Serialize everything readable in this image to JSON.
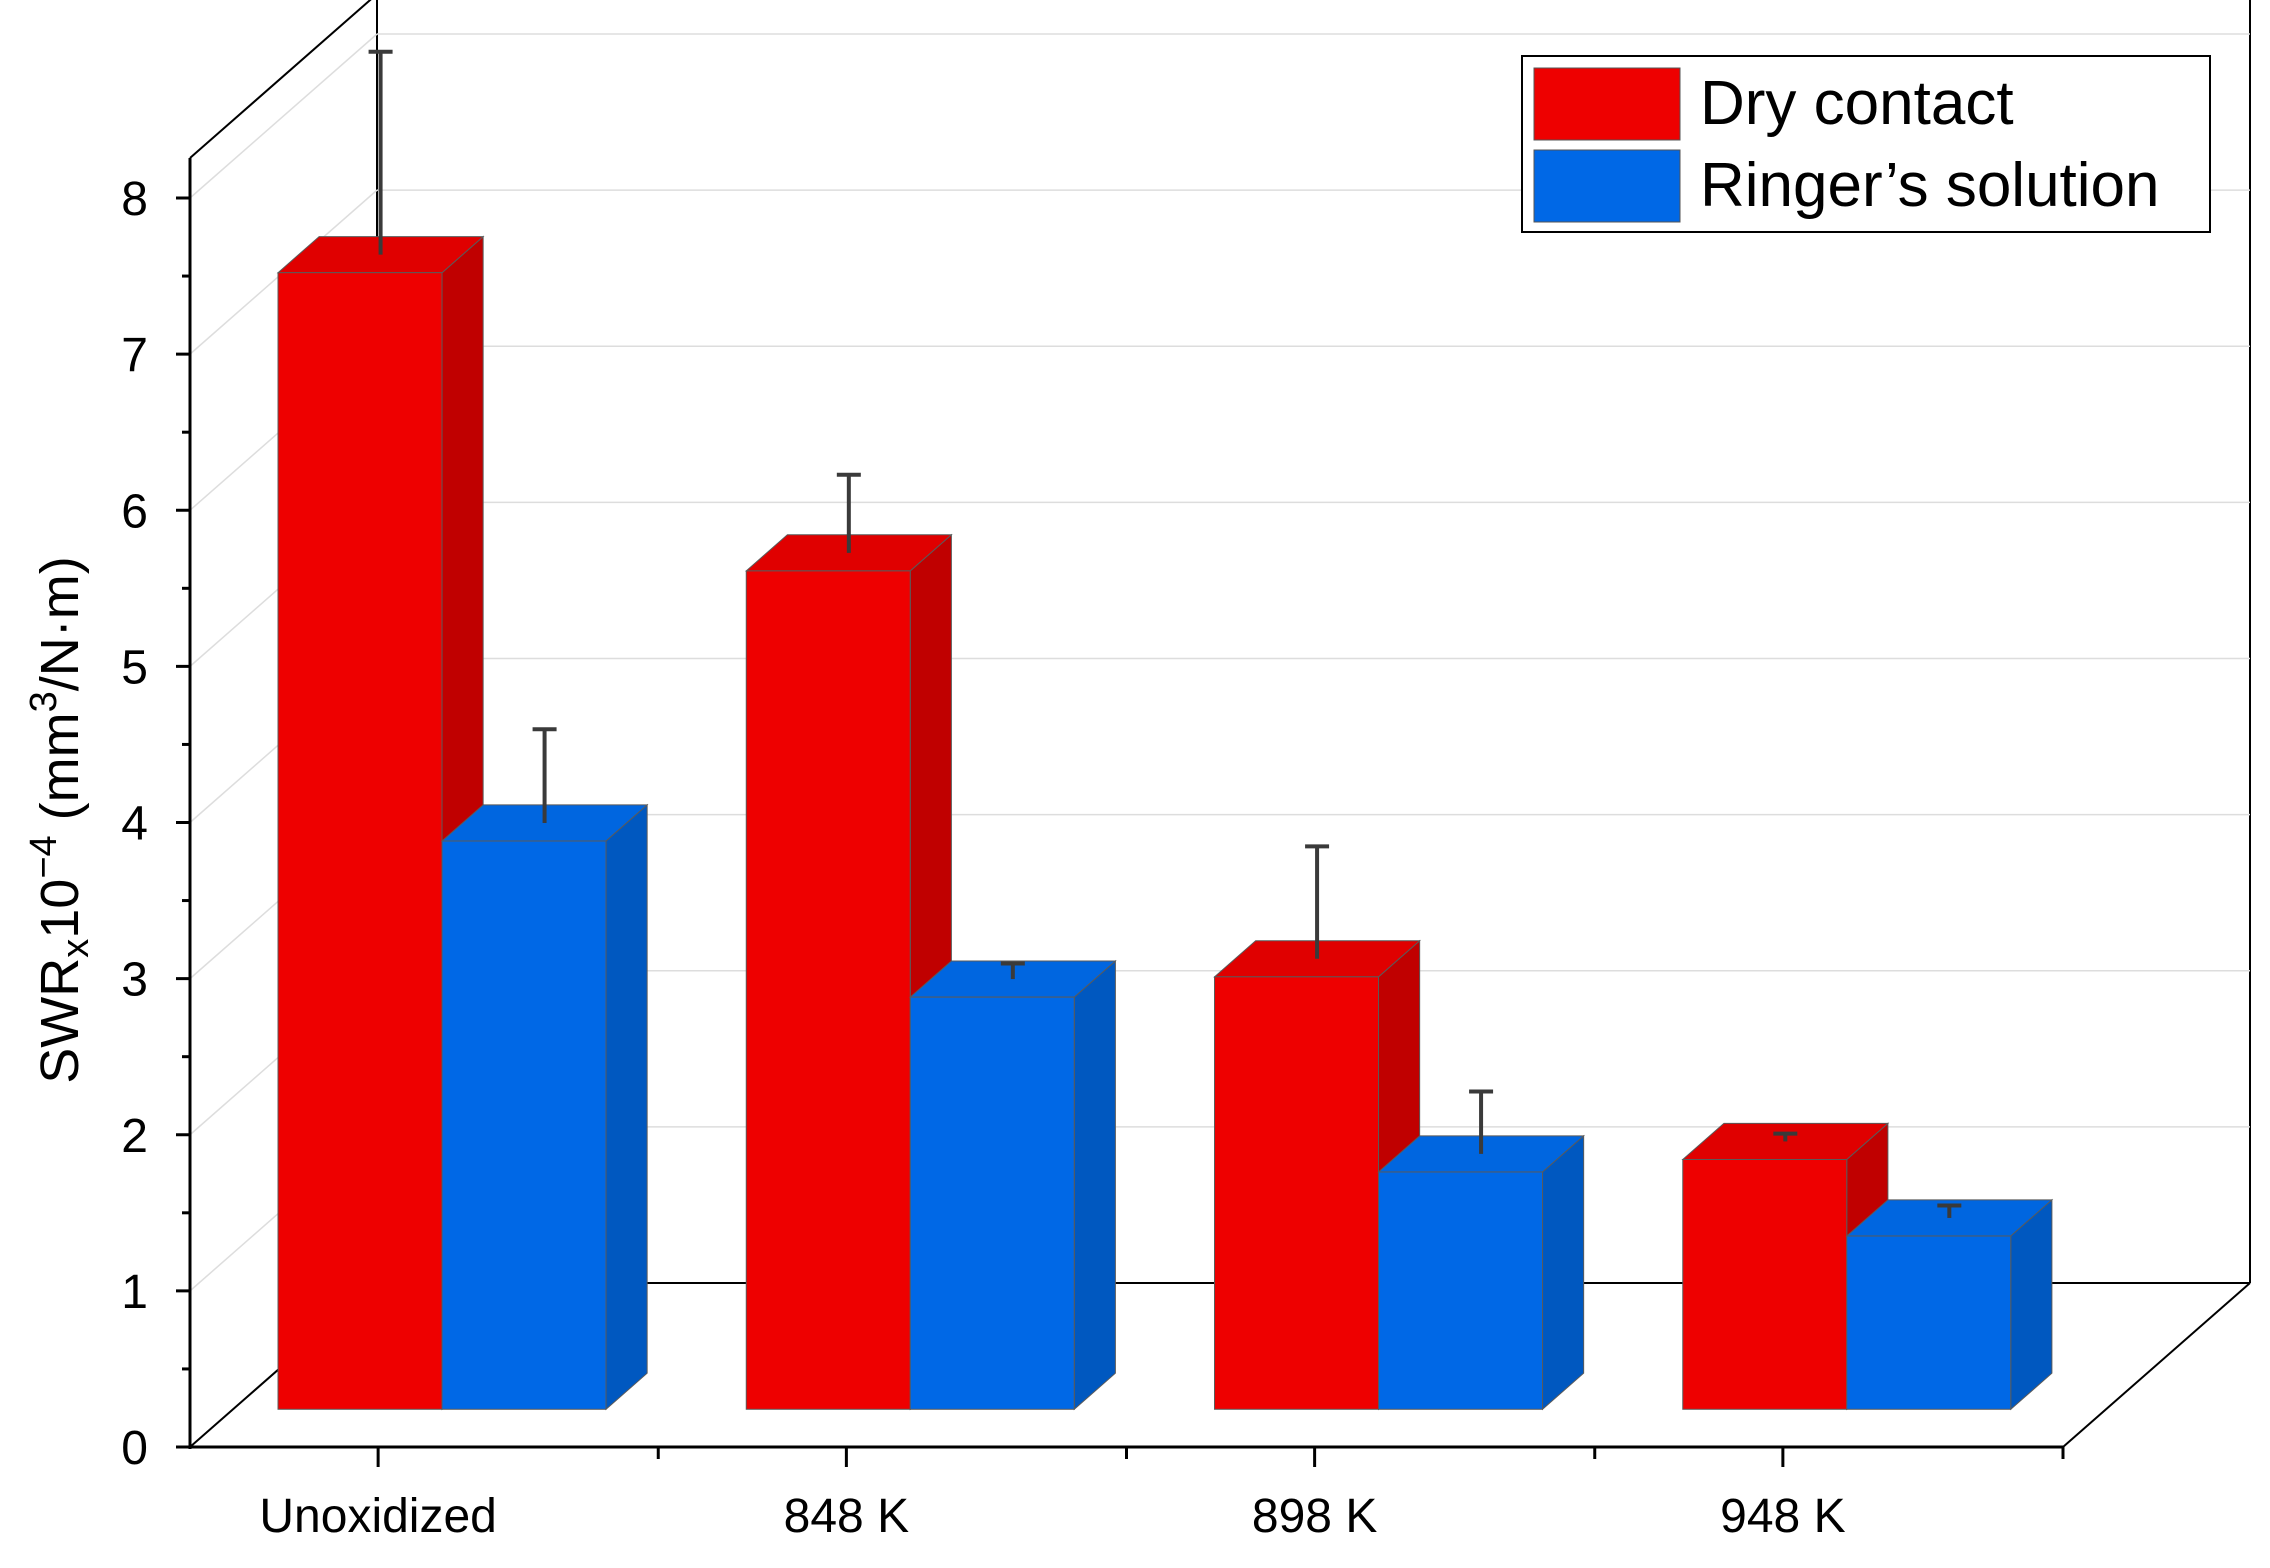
{
  "chart_data": {
    "type": "bar",
    "title": "",
    "xlabel": "",
    "ylabel": {
      "main": "SWR",
      "sub": "x",
      "mult": "10",
      "exp": "−4",
      "unit_open": " (mm",
      "unit_exp": "3",
      "unit_close": "/N·m)"
    },
    "ylim": [
      0,
      8
    ],
    "yticks": [
      "0",
      "1",
      "2",
      "3",
      "4",
      "5",
      "6",
      "7",
      "8"
    ],
    "categories": [
      "Unoxidized",
      "848 K",
      "898 K",
      "948 K"
    ],
    "series": [
      {
        "name": "Dry contact",
        "values": [
          7.28,
          5.37,
          2.77,
          1.6
        ],
        "errors": [
          1.3,
          0.5,
          0.72,
          0.05
        ],
        "color": "#ee0000",
        "color_side": "#c00000",
        "color_top": "#e00000"
      },
      {
        "name": "Ringer’s solution",
        "values": [
          3.64,
          2.64,
          1.52,
          1.11
        ],
        "errors": [
          0.6,
          0.1,
          0.4,
          0.08
        ],
        "color": "#0068e6",
        "color_side": "#0058c0",
        "color_top": "#0066e0"
      }
    ],
    "grid": true,
    "legend": "top-right",
    "style": "3d-bars"
  }
}
